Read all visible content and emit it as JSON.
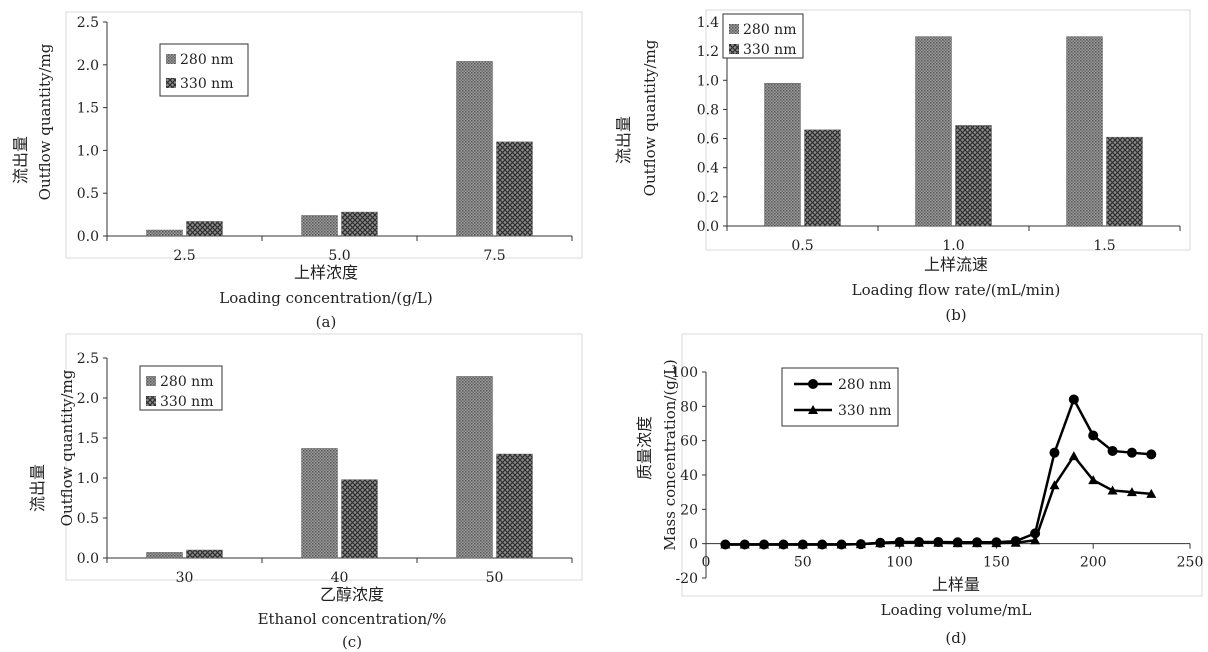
{
  "figure": {
    "panels": [
      "(a)",
      "(b)",
      "(c)",
      "(d)"
    ]
  },
  "colors": {
    "bar280": "#808080",
    "bar330": "#6a6a6a",
    "line": "#000000",
    "axis": "#333333"
  },
  "chart_data": [
    {
      "type": "bar",
      "panel": "(a)",
      "categories": [
        "2.5",
        "5.0",
        "7.5"
      ],
      "series": [
        {
          "name": "280 nm",
          "values": [
            0.07,
            0.24,
            2.04
          ]
        },
        {
          "name": "330 nm",
          "values": [
            0.17,
            0.28,
            1.1
          ]
        }
      ],
      "ylabel_cn": "流出量",
      "ylabel": "Outflow quantity/mg",
      "xlabel_cn": "上样浓度",
      "xlabel": "Loading concentration/(g/L)",
      "ylim": [
        0,
        2.5
      ],
      "yticks": [
        "0.0",
        "0.5",
        "1.0",
        "1.5",
        "2.0",
        "2.5"
      ],
      "legend": "top-left"
    },
    {
      "type": "bar",
      "panel": "(b)",
      "categories": [
        "0.5",
        "1.0",
        "1.5"
      ],
      "series": [
        {
          "name": "280 nm",
          "values": [
            0.98,
            1.3,
            1.3
          ]
        },
        {
          "name": "330 nm",
          "values": [
            0.66,
            0.69,
            0.61
          ]
        }
      ],
      "ylabel_cn": "流出量",
      "ylabel": "Outflow quantity/mg",
      "xlabel_cn": "上样流速",
      "xlabel": "Loading flow rate/(mL/min)",
      "ylim": [
        0,
        1.4
      ],
      "yticks": [
        "0.0",
        "0.2",
        "0.4",
        "0.6",
        "0.8",
        "1.0",
        "1.2",
        "1.4"
      ],
      "legend": "top-left"
    },
    {
      "type": "bar",
      "panel": "(c)",
      "categories": [
        "30",
        "40",
        "50"
      ],
      "series": [
        {
          "name": "280 nm",
          "values": [
            0.07,
            1.37,
            2.27
          ]
        },
        {
          "name": "330 nm",
          "values": [
            0.1,
            0.98,
            1.3
          ]
        }
      ],
      "ylabel_cn": "流出量",
      "ylabel": "Outflow quantity/mg",
      "xlabel_cn": "乙醇浓度",
      "xlabel": "Ethanol concentration/%",
      "ylim": [
        0,
        2.5
      ],
      "yticks": [
        "0.0",
        "0.5",
        "1.0",
        "1.5",
        "2.0",
        "2.5"
      ],
      "legend": "top-left"
    },
    {
      "type": "line",
      "panel": "(d)",
      "x": [
        10,
        20,
        30,
        40,
        50,
        60,
        70,
        80,
        90,
        100,
        110,
        120,
        130,
        140,
        150,
        160,
        170,
        180,
        190,
        200,
        210,
        220,
        230
      ],
      "series": [
        {
          "name": "280 nm",
          "marker": "circle",
          "values": [
            -0.5,
            -0.5,
            -0.5,
            -0.5,
            -0.5,
            -0.5,
            -0.5,
            -0.3,
            0.5,
            1.0,
            1.0,
            1.0,
            0.8,
            0.8,
            0.8,
            1.5,
            6,
            53,
            84,
            63,
            54,
            53,
            52
          ]
        },
        {
          "name": "330 nm",
          "marker": "triangle",
          "values": [
            -0.5,
            -0.5,
            -0.5,
            -0.5,
            -0.5,
            -0.5,
            -0.5,
            -0.3,
            0.3,
            0.5,
            0.5,
            0.5,
            0.3,
            0.3,
            0.3,
            0.5,
            2,
            34,
            51,
            37,
            31,
            30,
            29
          ]
        }
      ],
      "ylabel_cn": "质量浓度",
      "ylabel": "Mass concentration/(g/L)",
      "xlabel_cn": "上样量",
      "xlabel": "Loading volume/mL",
      "xlim": [
        0,
        250
      ],
      "ylim": [
        -20,
        100
      ],
      "xticks": [
        "0",
        "50",
        "100",
        "150",
        "200",
        "250"
      ],
      "yticks": [
        "-20",
        "0",
        "20",
        "40",
        "60",
        "80",
        "100"
      ],
      "legend": "top-left"
    }
  ]
}
